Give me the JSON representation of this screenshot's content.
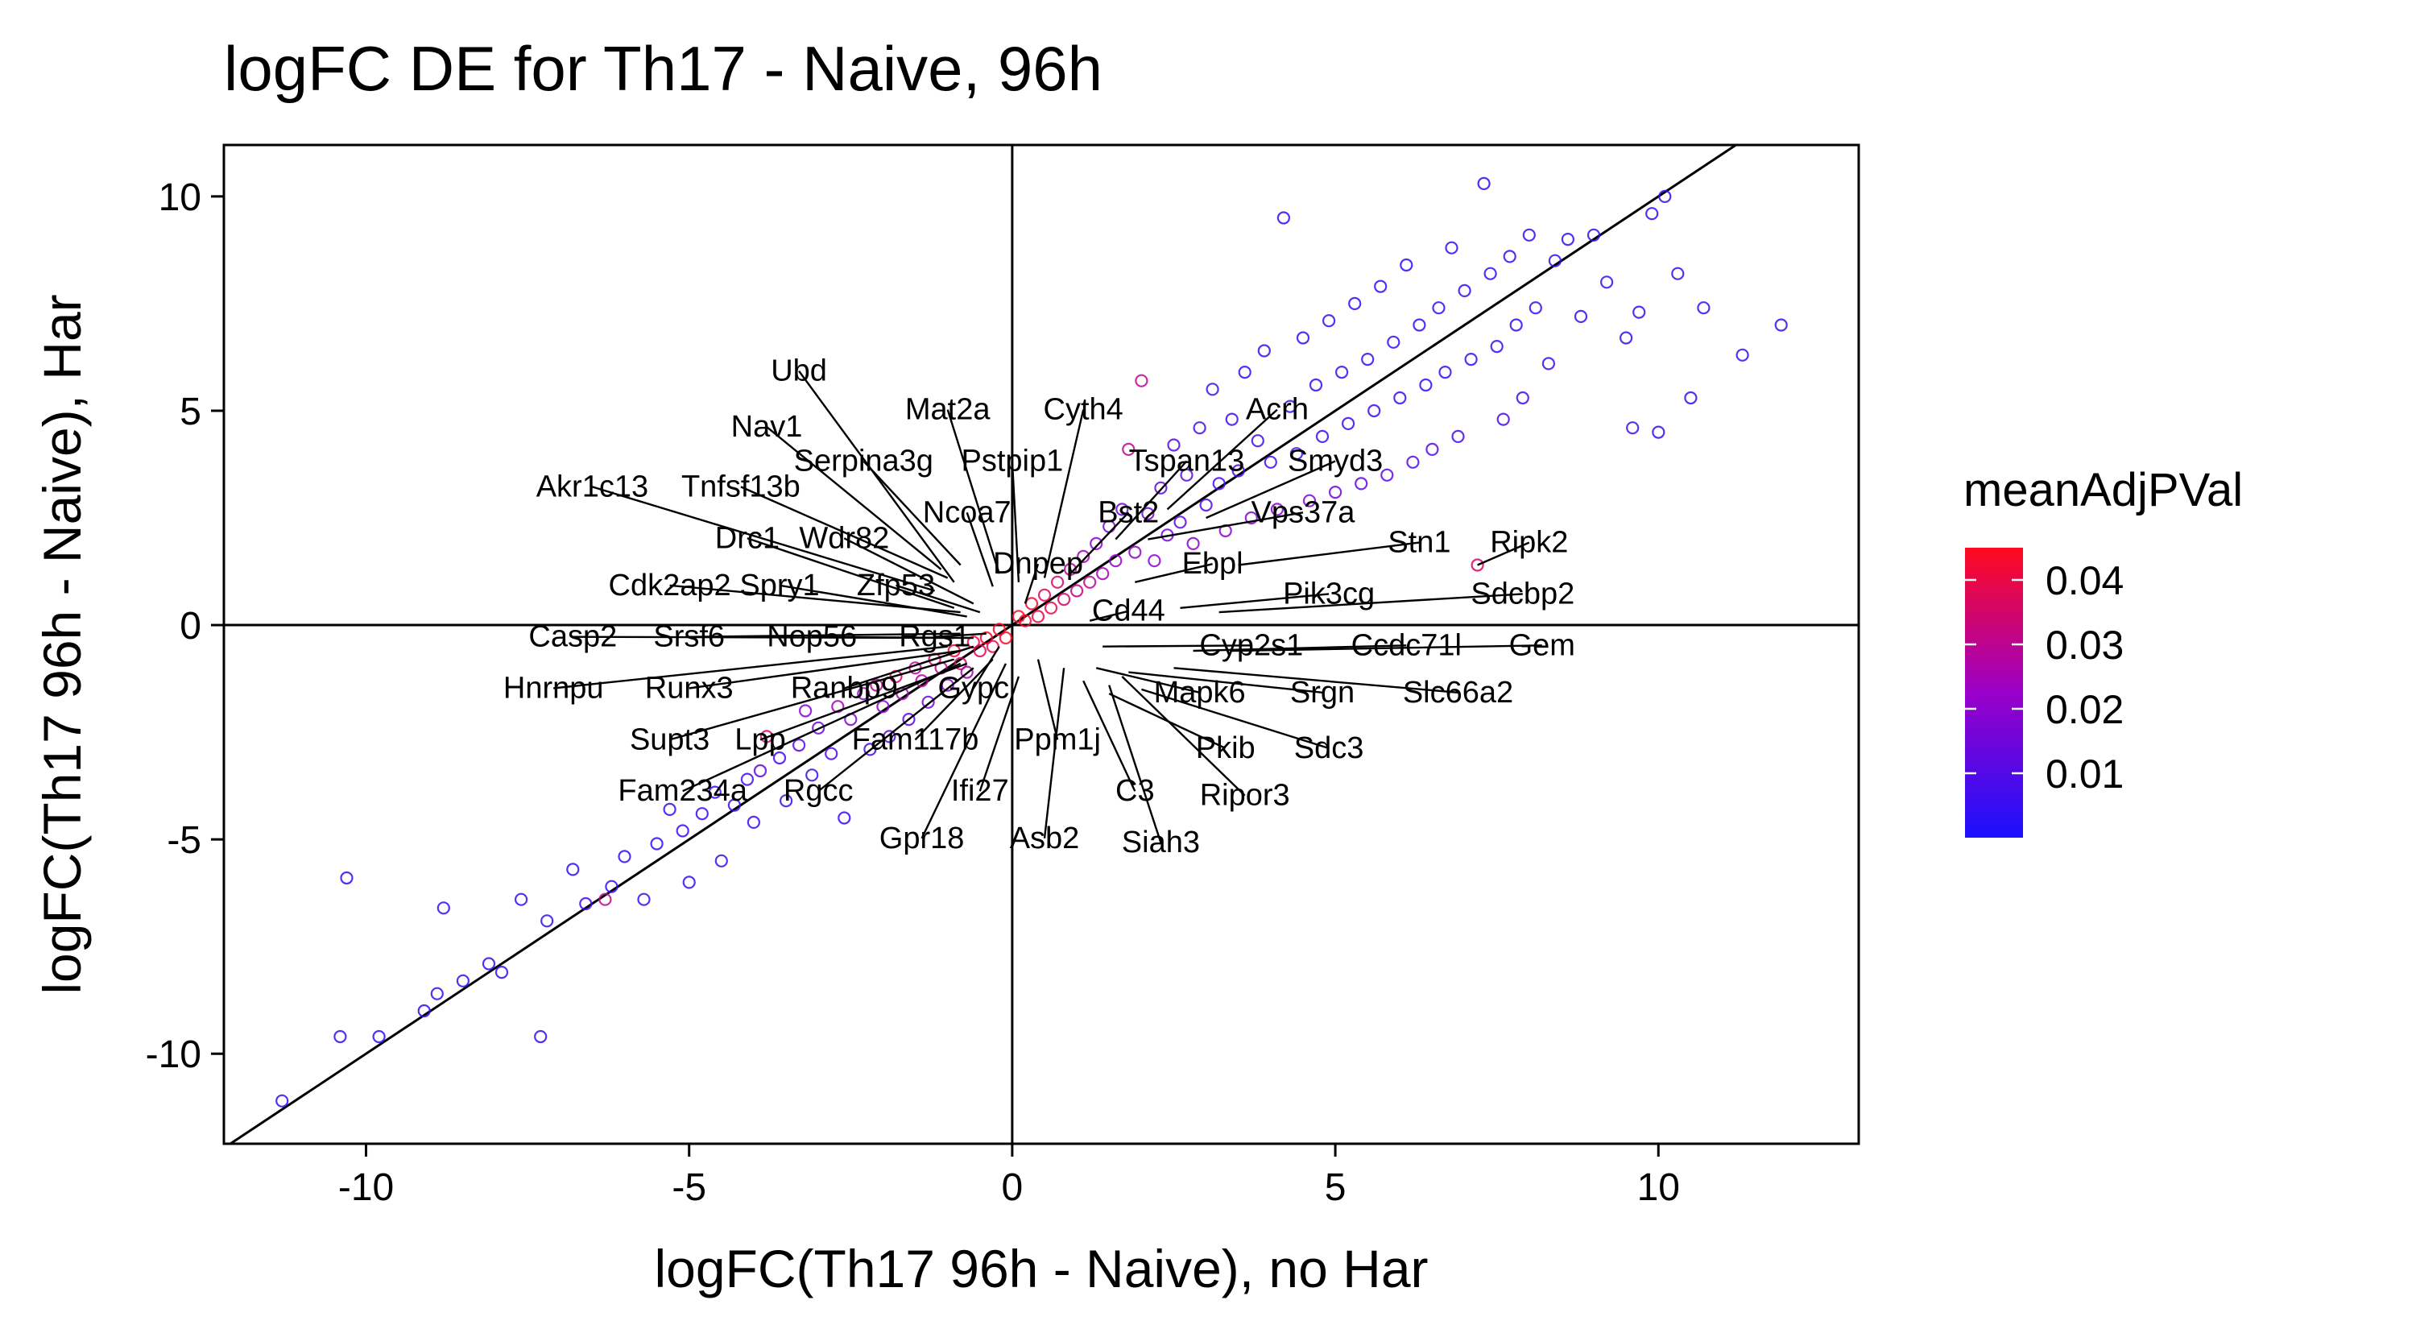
{
  "chart_data": {
    "type": "scatter",
    "title": "logFC DE for Th17 - Naive, 96h",
    "xlabel": "logFC(Th17 96h - Naive), no Har",
    "ylabel": "logFC(Th17 96h - Naive), Har",
    "xlim": [
      -12.2,
      13.1
    ],
    "ylim": [
      -12.1,
      11.2
    ],
    "xticks": [
      -10,
      -5,
      0,
      5,
      10
    ],
    "yticks": [
      -10,
      -5,
      0,
      5,
      10
    ],
    "xtick_labels": [
      "-10",
      "-5",
      "0",
      "5",
      "10"
    ],
    "ytick_labels": [
      "-10",
      "-5",
      "0",
      "5",
      "10"
    ],
    "reference_lines": {
      "x_zero": true,
      "y_zero": true,
      "identity": true
    },
    "grid": false,
    "legend": {
      "title": "meanAdjPVal",
      "position": "right",
      "range": [
        0.0,
        0.045
      ],
      "ticks": [
        0.04,
        0.03,
        0.02,
        0.01
      ],
      "tick_labels": [
        "0.04",
        "0.03",
        "0.02",
        "0.01"
      ],
      "colors": {
        "low": "#1a10ff",
        "mid": "#9a00c8",
        "high": "#ff0a1e"
      }
    },
    "points": [
      [
        -11.3,
        -11.1,
        0.003
      ],
      [
        -10.3,
        -5.9,
        0.003
      ],
      [
        -10.4,
        -9.6,
        0.004
      ],
      [
        -9.8,
        -9.6,
        0.003
      ],
      [
        -9.1,
        -9.0,
        0.004
      ],
      [
        -8.9,
        -8.6,
        0.003
      ],
      [
        -8.8,
        -6.6,
        0.004
      ],
      [
        -8.5,
        -8.3,
        0.003
      ],
      [
        -8.1,
        -7.9,
        0.004
      ],
      [
        -7.9,
        -8.1,
        0.005
      ],
      [
        -7.6,
        -6.4,
        0.004
      ],
      [
        -7.3,
        -9.6,
        0.004
      ],
      [
        -7.2,
        -6.9,
        0.005
      ],
      [
        -6.8,
        -5.7,
        0.003
      ],
      [
        -6.6,
        -6.5,
        0.006
      ],
      [
        -6.3,
        -6.4,
        0.03
      ],
      [
        -6.2,
        -6.1,
        0.004
      ],
      [
        -6.0,
        -5.4,
        0.005
      ],
      [
        -5.7,
        -6.4,
        0.004
      ],
      [
        -5.5,
        -5.1,
        0.005
      ],
      [
        -5.3,
        -4.3,
        0.005
      ],
      [
        -5.1,
        -4.8,
        0.006
      ],
      [
        -5.0,
        -6.0,
        0.004
      ],
      [
        -4.8,
        -4.4,
        0.006
      ],
      [
        -4.6,
        -3.9,
        0.007
      ],
      [
        -4.5,
        -5.5,
        0.005
      ],
      [
        -4.3,
        -4.2,
        0.006
      ],
      [
        -4.1,
        -3.6,
        0.008
      ],
      [
        -4.0,
        -4.6,
        0.006
      ],
      [
        -3.9,
        -3.4,
        0.012
      ],
      [
        -3.8,
        -2.6,
        0.035
      ],
      [
        -3.6,
        -3.1,
        0.007
      ],
      [
        -3.5,
        -4.1,
        0.005
      ],
      [
        -3.3,
        -2.8,
        0.01
      ],
      [
        -3.2,
        -2.0,
        0.02
      ],
      [
        -3.1,
        -3.5,
        0.006
      ],
      [
        -3.0,
        -2.4,
        0.015
      ],
      [
        -2.8,
        -3.0,
        0.008
      ],
      [
        -2.7,
        -1.9,
        0.025
      ],
      [
        -2.6,
        -4.5,
        0.005
      ],
      [
        -2.5,
        -2.2,
        0.018
      ],
      [
        -2.3,
        -1.6,
        0.022
      ],
      [
        -2.2,
        -2.9,
        0.008
      ],
      [
        -2.1,
        -1.4,
        0.03
      ],
      [
        -2.0,
        -1.9,
        0.02
      ],
      [
        -1.9,
        -2.6,
        0.01
      ],
      [
        -1.8,
        -1.2,
        0.035
      ],
      [
        -1.7,
        -1.6,
        0.025
      ],
      [
        -1.6,
        -2.2,
        0.012
      ],
      [
        -1.5,
        -1.0,
        0.03
      ],
      [
        -1.4,
        -1.3,
        0.028
      ],
      [
        -1.3,
        -1.8,
        0.015
      ],
      [
        -1.2,
        -0.8,
        0.035
      ],
      [
        -1.1,
        -1.0,
        0.03
      ],
      [
        -1.0,
        -1.4,
        0.02
      ],
      [
        -0.9,
        -0.6,
        0.04
      ],
      [
        -0.8,
        -0.9,
        0.035
      ],
      [
        -0.7,
        -1.1,
        0.025
      ],
      [
        -0.6,
        -0.4,
        0.04
      ],
      [
        -0.5,
        -0.6,
        0.038
      ],
      [
        -0.4,
        -0.3,
        0.042
      ],
      [
        -0.3,
        -0.5,
        0.04
      ],
      [
        -0.2,
        -0.1,
        0.044
      ],
      [
        -0.1,
        -0.3,
        0.043
      ],
      [
        0.1,
        0.2,
        0.044
      ],
      [
        0.2,
        0.1,
        0.043
      ],
      [
        0.3,
        0.5,
        0.042
      ],
      [
        0.4,
        0.2,
        0.04
      ],
      [
        0.5,
        0.7,
        0.038
      ],
      [
        0.6,
        0.4,
        0.04
      ],
      [
        0.7,
        1.0,
        0.035
      ],
      [
        0.8,
        0.6,
        0.035
      ],
      [
        0.9,
        1.3,
        0.03
      ],
      [
        1.0,
        0.8,
        0.03
      ],
      [
        1.1,
        1.6,
        0.025
      ],
      [
        1.2,
        1.0,
        0.03
      ],
      [
        1.3,
        1.9,
        0.02
      ],
      [
        1.4,
        1.2,
        0.025
      ],
      [
        1.5,
        2.3,
        0.018
      ],
      [
        1.6,
        1.5,
        0.022
      ],
      [
        1.7,
        2.7,
        0.015
      ],
      [
        1.8,
        4.1,
        0.03
      ],
      [
        1.9,
        1.7,
        0.02
      ],
      [
        2.0,
        5.7,
        0.03
      ],
      [
        2.1,
        2.6,
        0.015
      ],
      [
        2.2,
        1.5,
        0.02
      ],
      [
        2.3,
        3.2,
        0.012
      ],
      [
        2.4,
        2.1,
        0.015
      ],
      [
        2.5,
        4.2,
        0.01
      ],
      [
        2.6,
        2.4,
        0.012
      ],
      [
        2.7,
        3.5,
        0.01
      ],
      [
        2.8,
        1.9,
        0.02
      ],
      [
        2.9,
        4.6,
        0.008
      ],
      [
        3.0,
        2.8,
        0.01
      ],
      [
        3.1,
        5.5,
        0.006
      ],
      [
        3.2,
        3.3,
        0.008
      ],
      [
        3.3,
        2.2,
        0.02
      ],
      [
        3.4,
        4.8,
        0.007
      ],
      [
        3.5,
        3.6,
        0.008
      ],
      [
        3.6,
        5.9,
        0.005
      ],
      [
        3.7,
        2.5,
        0.018
      ],
      [
        3.8,
        4.3,
        0.007
      ],
      [
        3.9,
        6.4,
        0.005
      ],
      [
        4.0,
        3.8,
        0.007
      ],
      [
        4.1,
        2.7,
        0.02
      ],
      [
        4.2,
        9.5,
        0.003
      ],
      [
        4.3,
        5.1,
        0.006
      ],
      [
        4.4,
        4.0,
        0.007
      ],
      [
        4.5,
        6.7,
        0.004
      ],
      [
        4.6,
        2.9,
        0.018
      ],
      [
        4.7,
        5.6,
        0.005
      ],
      [
        4.8,
        4.4,
        0.006
      ],
      [
        4.9,
        7.1,
        0.004
      ],
      [
        5.0,
        3.1,
        0.015
      ],
      [
        5.1,
        5.9,
        0.005
      ],
      [
        5.2,
        4.7,
        0.006
      ],
      [
        5.3,
        7.5,
        0.004
      ],
      [
        5.4,
        3.3,
        0.012
      ],
      [
        5.5,
        6.2,
        0.005
      ],
      [
        5.6,
        5.0,
        0.006
      ],
      [
        5.7,
        7.9,
        0.004
      ],
      [
        5.8,
        3.5,
        0.012
      ],
      [
        5.9,
        6.6,
        0.005
      ],
      [
        6.0,
        5.3,
        0.006
      ],
      [
        6.1,
        8.4,
        0.003
      ],
      [
        6.2,
        3.8,
        0.01
      ],
      [
        6.3,
        7.0,
        0.004
      ],
      [
        6.4,
        5.6,
        0.005
      ],
      [
        6.5,
        4.1,
        0.01
      ],
      [
        6.6,
        7.4,
        0.004
      ],
      [
        6.7,
        5.9,
        0.005
      ],
      [
        6.8,
        8.8,
        0.003
      ],
      [
        6.9,
        4.4,
        0.008
      ],
      [
        7.0,
        7.8,
        0.004
      ],
      [
        7.1,
        6.2,
        0.005
      ],
      [
        7.2,
        1.4,
        0.035
      ],
      [
        7.3,
        10.3,
        0.003
      ],
      [
        7.4,
        8.2,
        0.004
      ],
      [
        7.5,
        6.5,
        0.005
      ],
      [
        7.6,
        4.8,
        0.008
      ],
      [
        7.7,
        8.6,
        0.004
      ],
      [
        7.8,
        7.0,
        0.005
      ],
      [
        7.9,
        5.3,
        0.007
      ],
      [
        8.0,
        9.1,
        0.003
      ],
      [
        8.1,
        7.4,
        0.004
      ],
      [
        8.3,
        6.1,
        0.006
      ],
      [
        8.4,
        8.5,
        0.004
      ],
      [
        8.6,
        9.0,
        0.003
      ],
      [
        8.8,
        7.2,
        0.005
      ],
      [
        9.0,
        9.1,
        0.003
      ],
      [
        9.2,
        8.0,
        0.004
      ],
      [
        9.5,
        6.7,
        0.005
      ],
      [
        9.6,
        4.6,
        0.006
      ],
      [
        9.7,
        7.3,
        0.004
      ],
      [
        9.9,
        9.6,
        0.003
      ],
      [
        10.0,
        4.5,
        0.005
      ],
      [
        10.1,
        10.0,
        0.003
      ],
      [
        10.3,
        8.2,
        0.004
      ],
      [
        10.5,
        5.3,
        0.005
      ],
      [
        10.7,
        7.4,
        0.004
      ],
      [
        11.3,
        6.3,
        0.004
      ],
      [
        11.9,
        7.0,
        0.004
      ]
    ],
    "labels": [
      {
        "text": "Ubd",
        "x": -3.3,
        "y": 5.7,
        "px": -0.9,
        "py": 1.0
      },
      {
        "text": "Mat2a",
        "x": -1.0,
        "y": 4.8,
        "px": -0.2,
        "py": 1.2
      },
      {
        "text": "Cyth4",
        "x": 1.1,
        "y": 4.8,
        "px": 0.5,
        "py": 1.1
      },
      {
        "text": "Nav1",
        "x": -3.8,
        "y": 4.4,
        "px": -1.1,
        "py": 1.3
      },
      {
        "text": "Serpina3g",
        "x": -2.3,
        "y": 3.6,
        "px": -0.8,
        "py": 1.4
      },
      {
        "text": "Pstpip1",
        "x": 0.0,
        "y": 3.6,
        "px": 0.1,
        "py": 1.0
      },
      {
        "text": "Acrh",
        "x": 4.1,
        "y": 4.8,
        "px": 2.4,
        "py": 2.7
      },
      {
        "text": "Tspan13",
        "x": 2.7,
        "y": 3.6,
        "px": 1.6,
        "py": 2.0
      },
      {
        "text": "Smyd3",
        "x": 5.0,
        "y": 3.6,
        "px": 3.0,
        "py": 2.5
      },
      {
        "text": "Akr1c13",
        "x": -6.5,
        "y": 3.0,
        "px": -1.2,
        "py": 0.8
      },
      {
        "text": "Tnfsf13b",
        "x": -4.2,
        "y": 3.0,
        "px": -1.0,
        "py": 1.1
      },
      {
        "text": "Ncoa7",
        "x": -0.7,
        "y": 2.4,
        "px": -0.3,
        "py": 0.9
      },
      {
        "text": "Bst2",
        "x": 1.8,
        "y": 2.4,
        "px": 0.9,
        "py": 1.2
      },
      {
        "text": "Vps37a",
        "x": 4.5,
        "y": 2.4,
        "px": 2.1,
        "py": 2.0
      },
      {
        "text": "Drc1",
        "x": -4.1,
        "y": 1.8,
        "px": -0.9,
        "py": 0.4
      },
      {
        "text": "Wdr82",
        "x": -2.6,
        "y": 1.8,
        "px": -0.6,
        "py": 0.5
      },
      {
        "text": "Stn1",
        "x": 6.3,
        "y": 1.7,
        "px": 3.5,
        "py": 1.4
      },
      {
        "text": "Ripk2",
        "x": 8.0,
        "y": 1.7,
        "px": 7.2,
        "py": 1.4
      },
      {
        "text": "Dnpep",
        "x": 0.4,
        "y": 1.2,
        "px": 0.2,
        "py": 0.5
      },
      {
        "text": "Ebpl",
        "x": 3.1,
        "y": 1.2,
        "px": 1.9,
        "py": 1.0
      },
      {
        "text": "Cdk2ap2",
        "x": -5.3,
        "y": 0.7,
        "px": -0.8,
        "py": 0.3
      },
      {
        "text": "Spry1",
        "x": -3.6,
        "y": 0.7,
        "px": -0.7,
        "py": 0.2
      },
      {
        "text": "Zfp53",
        "x": -1.8,
        "y": 0.7,
        "px": -0.5,
        "py": 0.3
      },
      {
        "text": "Pik3cg",
        "x": 4.9,
        "y": 0.5,
        "px": 2.6,
        "py": 0.4
      },
      {
        "text": "Sdcbp2",
        "x": 7.9,
        "y": 0.5,
        "px": 3.2,
        "py": 0.3
      },
      {
        "text": "Cd44",
        "x": 1.8,
        "y": 0.1,
        "px": 1.2,
        "py": 0.1
      },
      {
        "text": "Casp2",
        "x": -6.8,
        "y": -0.5,
        "px": -0.9,
        "py": -0.3
      },
      {
        "text": "Srsf6",
        "x": -5.0,
        "y": -0.5,
        "px": -0.8,
        "py": -0.2
      },
      {
        "text": "Nop56",
        "x": -3.1,
        "y": -0.5,
        "px": -0.6,
        "py": -0.3
      },
      {
        "text": "Rgs1",
        "x": -1.2,
        "y": -0.5,
        "px": -0.4,
        "py": -0.2
      },
      {
        "text": "Cyp2s1",
        "x": 3.7,
        "y": -0.7,
        "px": 1.4,
        "py": -0.5
      },
      {
        "text": "Ccdc71l",
        "x": 6.1,
        "y": -0.7,
        "px": 2.8,
        "py": -0.6
      },
      {
        "text": "Gem",
        "x": 8.2,
        "y": -0.7,
        "px": 3.4,
        "py": -0.6
      },
      {
        "text": "Hnrnpu",
        "x": -7.1,
        "y": -1.7,
        "px": -1.0,
        "py": -0.5
      },
      {
        "text": "Runx3",
        "x": -5.0,
        "y": -1.7,
        "px": -0.8,
        "py": -0.6
      },
      {
        "text": "Ranbp9",
        "x": -2.6,
        "y": -1.7,
        "px": -0.6,
        "py": -0.5
      },
      {
        "text": "Gypc",
        "x": -0.6,
        "y": -1.7,
        "px": -0.2,
        "py": -0.5
      },
      {
        "text": "Mapk6",
        "x": 2.9,
        "y": -1.8,
        "px": 1.3,
        "py": -1.0
      },
      {
        "text": "Srgn",
        "x": 4.8,
        "y": -1.8,
        "px": 1.8,
        "py": -1.1
      },
      {
        "text": "Slc66a2",
        "x": 6.9,
        "y": -1.8,
        "px": 2.5,
        "py": -1.0
      },
      {
        "text": "Supt3",
        "x": -5.3,
        "y": -2.9,
        "px": -0.9,
        "py": -0.8
      },
      {
        "text": "Lpp",
        "x": -3.9,
        "y": -2.9,
        "px": -0.7,
        "py": -0.9
      },
      {
        "text": "Fam117b",
        "x": -1.5,
        "y": -2.9,
        "px": -0.3,
        "py": -0.8
      },
      {
        "text": "Ppm1j",
        "x": 0.7,
        "y": -2.9,
        "px": 0.4,
        "py": -0.8
      },
      {
        "text": "Pkib",
        "x": 3.3,
        "y": -3.1,
        "px": 1.5,
        "py": -1.6
      },
      {
        "text": "Sdc3",
        "x": 4.9,
        "y": -3.1,
        "px": 2.0,
        "py": -1.5
      },
      {
        "text": "Fam234a",
        "x": -5.1,
        "y": -4.1,
        "px": -0.8,
        "py": -0.9
      },
      {
        "text": "Rgcc",
        "x": -3.0,
        "y": -4.1,
        "px": -0.6,
        "py": -1.0
      },
      {
        "text": "Ifi27",
        "x": -0.5,
        "y": -4.1,
        "px": 0.1,
        "py": -1.2
      },
      {
        "text": "C3",
        "x": 1.9,
        "y": -4.1,
        "px": 1.1,
        "py": -1.3
      },
      {
        "text": "Ripor3",
        "x": 3.6,
        "y": -4.2,
        "px": 1.7,
        "py": -1.2
      },
      {
        "text": "Gpr18",
        "x": -1.4,
        "y": -5.2,
        "px": -0.1,
        "py": -0.9
      },
      {
        "text": "Asb2",
        "x": 0.5,
        "y": -5.2,
        "px": 0.8,
        "py": -1.0
      },
      {
        "text": "Siah3",
        "x": 2.3,
        "y": -5.3,
        "px": 1.5,
        "py": -1.4
      }
    ]
  }
}
